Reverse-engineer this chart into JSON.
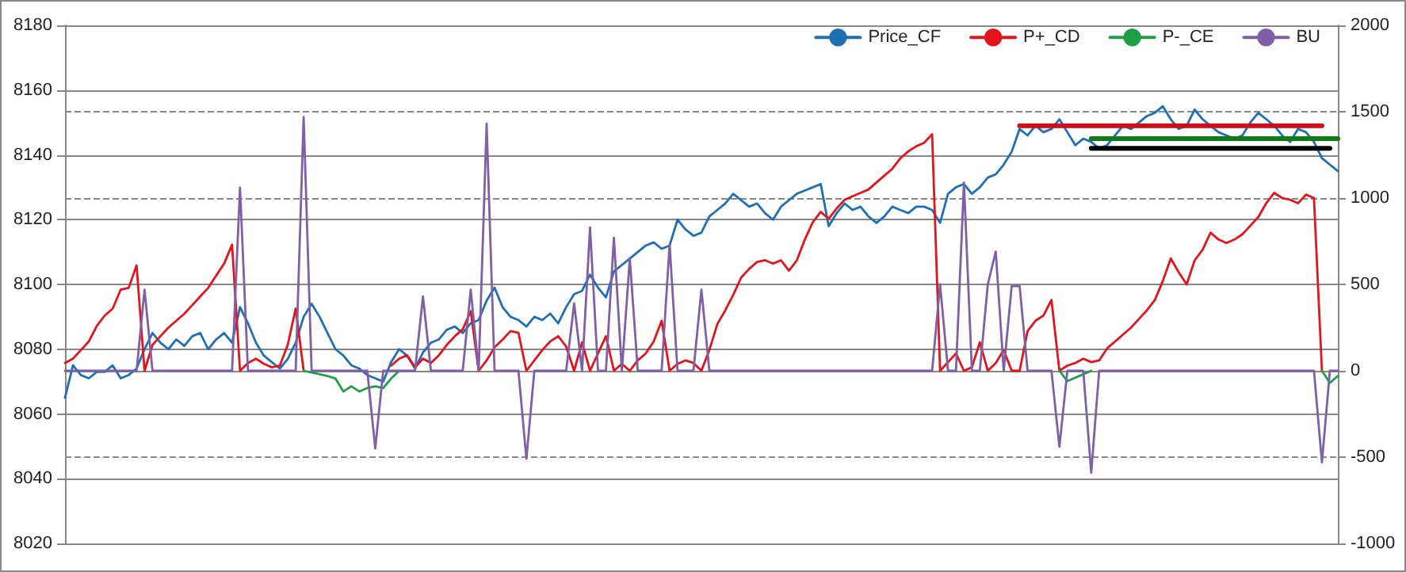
{
  "chart_data": {
    "type": "line",
    "marker": "none",
    "line_style": "solid",
    "grid": true,
    "legend": "top right",
    "categories": [
      null,
      null,
      null,
      null,
      null,
      null,
      null,
      null,
      null,
      null,
      null,
      null,
      null,
      null,
      null,
      null,
      null,
      null,
      null,
      null,
      null,
      null,
      null,
      null,
      null,
      null,
      null,
      null,
      null,
      null,
      null,
      null,
      null,
      null,
      null,
      null,
      null,
      null,
      null,
      null,
      null,
      null,
      null,
      null,
      null,
      null,
      null,
      null,
      null,
      null,
      null,
      null,
      null,
      null,
      null,
      null,
      null,
      null,
      null,
      null,
      null,
      null,
      null,
      null,
      null,
      null,
      null,
      null,
      null,
      null,
      null,
      null,
      null,
      null,
      null,
      null,
      null,
      null,
      null,
      null,
      null,
      null,
      null,
      null,
      null,
      null,
      null,
      null,
      null,
      null,
      null,
      null,
      null,
      null,
      null,
      null,
      null,
      null,
      null,
      null,
      null,
      null,
      null,
      null,
      null,
      null,
      null,
      null,
      null,
      null,
      null,
      null,
      null,
      null,
      null,
      null,
      null,
      null,
      null,
      null,
      null,
      null,
      null,
      null,
      null,
      null,
      null,
      null,
      null,
      null,
      null,
      null,
      null,
      null,
      null,
      null,
      null,
      null,
      null,
      null,
      null,
      null,
      null,
      null,
      null,
      null,
      null,
      null,
      null,
      null,
      null,
      null,
      null,
      null,
      null,
      null,
      null,
      null,
      null,
      null,
      null
    ],
    "ylim": [
      8020,
      8180
    ],
    "yticks": [
      8020,
      8040,
      8060,
      8080,
      8100,
      8120,
      8140,
      8160,
      8180
    ],
    "y2lim": [
      -1000,
      2000
    ],
    "y2ticks": [
      -1000,
      -500,
      0,
      500,
      1000,
      1500,
      2000
    ],
    "series": [
      {
        "name": "Price_CF",
        "color": "#1f6fb4",
        "values": [
          8065,
          8075,
          8072,
          8071,
          8073,
          8073,
          8075,
          8071,
          8072,
          8074,
          8080,
          8085,
          8082,
          8080,
          8083,
          8081,
          8084,
          8085,
          8080,
          8083,
          8085,
          8082,
          8093,
          8088,
          8082,
          8078,
          8076,
          8074,
          8077,
          8082,
          8090,
          8094,
          8090,
          8085,
          8080,
          8078,
          8075,
          8074,
          8072,
          8071,
          8070,
          8076,
          8080,
          8078,
          8074,
          8079,
          8082,
          8083,
          8086,
          8087,
          8085,
          8088,
          8089,
          8095,
          8099,
          8093,
          8090,
          8089,
          8087,
          8090,
          8089,
          8091,
          8088,
          8093,
          8097,
          8098,
          8103,
          8099,
          8096,
          8104,
          8106,
          8108,
          8110,
          8112,
          8113,
          8111,
          8112,
          8120,
          8117,
          8115,
          8116,
          8121,
          8123,
          8125,
          8128,
          8126,
          8124,
          8125,
          8122,
          8120,
          8124,
          8126,
          8128,
          8129,
          8130,
          8131,
          8118,
          8122,
          8125,
          8123,
          8124,
          8121,
          8119,
          8121,
          8124,
          8123,
          8122,
          8124,
          8124,
          8123,
          8119,
          8128,
          8130,
          8131,
          8128,
          8130,
          8133,
          8134,
          8137,
          8141,
          8148,
          8146,
          8149,
          8147,
          8148,
          8151,
          8147,
          8143,
          8145,
          8144,
          8142,
          8143,
          8146,
          8149,
          8148,
          8150,
          8152,
          8153,
          8155,
          8151,
          8148,
          8149,
          8154,
          8151,
          8149,
          8147,
          8146,
          8145,
          8146,
          8150,
          8153,
          8151,
          8149,
          8146,
          8144,
          8148,
          8147,
          8144,
          8139,
          8137,
          8135
        ]
      },
      {
        "name": "P+_CD",
        "color": "#e3141c",
        "axis": "y2",
        "values": [
          45,
          70,
          120,
          170,
          260,
          320,
          360,
          470,
          480,
          610,
          0,
          150,
          200,
          250,
          290,
          330,
          380,
          430,
          480,
          550,
          620,
          730,
          0,
          45,
          70,
          40,
          20,
          30,
          150,
          360,
          0,
          null,
          null,
          null,
          null,
          null,
          null,
          null,
          null,
          null,
          null,
          30,
          70,
          90,
          20,
          70,
          45,
          90,
          150,
          200,
          240,
          345,
          0,
          60,
          136,
          180,
          230,
          220,
          0,
          60,
          120,
          170,
          200,
          140,
          0,
          165,
          0,
          100,
          200,
          0,
          40,
          0,
          60,
          100,
          170,
          290,
          0,
          40,
          60,
          45,
          0,
          120,
          270,
          350,
          440,
          540,
          590,
          630,
          640,
          620,
          640,
          580,
          640,
          760,
          860,
          920,
          880,
          940,
          990,
          1010,
          1030,
          1050,
          1090,
          1130,
          1170,
          1230,
          1270,
          1300,
          1320,
          1370,
          0,
          50,
          100,
          0,
          20,
          165,
          0,
          45,
          120,
          0,
          0,
          230,
          290,
          320,
          410,
          0,
          30,
          45,
          70,
          50,
          60,
          130,
          170,
          210,
          250,
          300,
          350,
          410,
          520,
          650,
          570,
          500,
          640,
          700,
          800,
          760,
          740,
          760,
          790,
          840,
          890,
          970,
          1030,
          1000,
          990,
          970,
          1020,
          1000,
          0,
          null,
          null
        ]
      },
      {
        "name": "P-_CE",
        "color": "#1f9e48",
        "axis": "y2",
        "values": [
          null,
          null,
          null,
          null,
          null,
          null,
          null,
          null,
          null,
          null,
          null,
          null,
          null,
          null,
          null,
          null,
          null,
          null,
          null,
          null,
          null,
          null,
          null,
          null,
          null,
          null,
          null,
          null,
          null,
          null,
          0,
          -10,
          -20,
          -30,
          -45,
          -120,
          -90,
          -120,
          -100,
          -90,
          -100,
          -45,
          0,
          null,
          null,
          null,
          null,
          null,
          null,
          null,
          null,
          null,
          null,
          null,
          null,
          null,
          null,
          null,
          null,
          null,
          null,
          null,
          null,
          null,
          null,
          null,
          null,
          null,
          null,
          null,
          null,
          null,
          null,
          null,
          null,
          null,
          null,
          null,
          null,
          null,
          null,
          null,
          null,
          null,
          null,
          null,
          null,
          null,
          null,
          null,
          null,
          null,
          null,
          null,
          null,
          null,
          null,
          null,
          null,
          null,
          null,
          null,
          null,
          null,
          null,
          null,
          null,
          null,
          null,
          null,
          null,
          null,
          null,
          null,
          null,
          null,
          null,
          null,
          null,
          null,
          null,
          null,
          null,
          null,
          null,
          0,
          -60,
          -40,
          -20,
          0,
          null,
          null,
          null,
          null,
          null,
          null,
          null,
          null,
          null,
          null,
          null,
          null,
          null,
          null,
          null,
          null,
          null,
          null,
          null,
          null,
          null,
          null,
          null,
          null,
          null,
          null,
          null,
          null,
          0,
          -70,
          -30
        ]
      },
      {
        "name": "BU",
        "color": "#7f5fa8",
        "axis": "y2",
        "values": [
          0,
          0,
          0,
          0,
          0,
          0,
          0,
          0,
          0,
          0,
          470,
          0,
          0,
          0,
          0,
          0,
          0,
          0,
          0,
          0,
          0,
          0,
          1060,
          0,
          0,
          0,
          0,
          0,
          0,
          0,
          1470,
          0,
          0,
          0,
          0,
          0,
          0,
          0,
          0,
          -450,
          0,
          0,
          0,
          0,
          0,
          430,
          0,
          0,
          0,
          0,
          0,
          470,
          0,
          1430,
          0,
          0,
          0,
          0,
          -510,
          0,
          0,
          0,
          0,
          0,
          390,
          0,
          830,
          0,
          0,
          770,
          0,
          650,
          0,
          0,
          0,
          0,
          730,
          0,
          0,
          0,
          470,
          0,
          0,
          0,
          0,
          0,
          0,
          0,
          0,
          0,
          0,
          0,
          0,
          0,
          0,
          0,
          0,
          0,
          0,
          0,
          0,
          0,
          0,
          0,
          0,
          0,
          0,
          0,
          0,
          0,
          500,
          0,
          0,
          1090,
          0,
          0,
          500,
          690,
          0,
          490,
          490,
          0,
          0,
          0,
          0,
          -440,
          0,
          0,
          0,
          -590,
          0,
          0,
          0,
          0,
          0,
          0,
          0,
          0,
          0,
          0,
          0,
          0,
          0,
          0,
          0,
          0,
          0,
          0,
          0,
          0,
          0,
          0,
          0,
          0,
          0,
          0,
          0,
          0,
          -530,
          0,
          0
        ]
      },
      {
        "color": "#c8101c",
        "values": [
          null,
          null,
          null,
          null,
          null,
          null,
          null,
          null,
          null,
          null,
          null,
          null,
          null,
          null,
          null,
          null,
          null,
          null,
          null,
          null,
          null,
          null,
          null,
          null,
          null,
          null,
          null,
          null,
          null,
          null,
          null,
          null,
          null,
          null,
          null,
          null,
          null,
          null,
          null,
          null,
          null,
          null,
          null,
          null,
          null,
          null,
          null,
          null,
          null,
          null,
          null,
          null,
          null,
          null,
          null,
          null,
          null,
          null,
          null,
          null,
          null,
          null,
          null,
          null,
          null,
          null,
          null,
          null,
          null,
          null,
          null,
          null,
          null,
          null,
          null,
          null,
          null,
          null,
          null,
          null,
          null,
          null,
          null,
          null,
          null,
          null,
          null,
          null,
          null,
          null,
          null,
          null,
          null,
          null,
          null,
          null,
          null,
          null,
          null,
          null,
          null,
          null,
          null,
          null,
          null,
          null,
          null,
          null,
          null,
          null,
          null,
          null,
          null,
          null,
          null,
          null,
          null,
          null,
          null,
          null,
          8149,
          8149,
          8149,
          8149,
          8149,
          8149,
          8149,
          8149,
          8149,
          8149,
          8149,
          8149,
          8149,
          8149,
          8149,
          8149,
          8149,
          8149,
          8149,
          8149,
          8149,
          8149,
          8149,
          8149,
          8149,
          8149,
          8149,
          8149,
          8149,
          8149,
          8149,
          8149,
          8149,
          8149,
          8149,
          8149,
          8149,
          8149,
          8149,
          null,
          null
        ]
      },
      {
        "color": "#107a18",
        "values": [
          null,
          null,
          null,
          null,
          null,
          null,
          null,
          null,
          null,
          null,
          null,
          null,
          null,
          null,
          null,
          null,
          null,
          null,
          null,
          null,
          null,
          null,
          null,
          null,
          null,
          null,
          null,
          null,
          null,
          null,
          null,
          null,
          null,
          null,
          null,
          null,
          null,
          null,
          null,
          null,
          null,
          null,
          null,
          null,
          null,
          null,
          null,
          null,
          null,
          null,
          null,
          null,
          null,
          null,
          null,
          null,
          null,
          null,
          null,
          null,
          null,
          null,
          null,
          null,
          null,
          null,
          null,
          null,
          null,
          null,
          null,
          null,
          null,
          null,
          null,
          null,
          null,
          null,
          null,
          null,
          null,
          null,
          null,
          null,
          null,
          null,
          null,
          null,
          null,
          null,
          null,
          null,
          null,
          null,
          null,
          null,
          null,
          null,
          null,
          null,
          null,
          null,
          null,
          null,
          null,
          null,
          null,
          null,
          null,
          null,
          null,
          null,
          null,
          null,
          null,
          null,
          null,
          null,
          null,
          null,
          null,
          null,
          null,
          null,
          null,
          null,
          null,
          null,
          null,
          8145,
          8145,
          8145,
          8145,
          8145,
          8145,
          8145,
          8145,
          8145,
          8145,
          8145,
          8145,
          8145,
          8145,
          8145,
          8145,
          8145,
          8145,
          8145,
          8145,
          8145,
          8145,
          8145,
          8145,
          8145,
          8145,
          8145,
          8145,
          8145,
          8145,
          8145,
          8145
        ]
      },
      {
        "color": "#000000",
        "values": [
          null,
          null,
          null,
          null,
          null,
          null,
          null,
          null,
          null,
          null,
          null,
          null,
          null,
          null,
          null,
          null,
          null,
          null,
          null,
          null,
          null,
          null,
          null,
          null,
          null,
          null,
          null,
          null,
          null,
          null,
          null,
          null,
          null,
          null,
          null,
          null,
          null,
          null,
          null,
          null,
          null,
          null,
          null,
          null,
          null,
          null,
          null,
          null,
          null,
          null,
          null,
          null,
          null,
          null,
          null,
          null,
          null,
          null,
          null,
          null,
          null,
          null,
          null,
          null,
          null,
          null,
          null,
          null,
          null,
          null,
          null,
          null,
          null,
          null,
          null,
          null,
          null,
          null,
          null,
          null,
          null,
          null,
          null,
          null,
          null,
          null,
          null,
          null,
          null,
          null,
          null,
          null,
          null,
          null,
          null,
          null,
          null,
          null,
          null,
          null,
          null,
          null,
          null,
          null,
          null,
          null,
          null,
          null,
          null,
          null,
          null,
          null,
          null,
          null,
          null,
          null,
          null,
          null,
          null,
          null,
          null,
          null,
          null,
          null,
          null,
          null,
          null,
          null,
          null,
          8142,
          8142,
          8142,
          8142,
          8142,
          8142,
          8142,
          8142,
          8142,
          8142,
          8142,
          8142,
          8142,
          8142,
          8142,
          8142,
          8142,
          8142,
          8142,
          8142,
          8142,
          8142,
          8142,
          8142,
          8142,
          8142,
          8142,
          8142,
          8142,
          8142,
          8142,
          null
        ]
      }
    ]
  }
}
